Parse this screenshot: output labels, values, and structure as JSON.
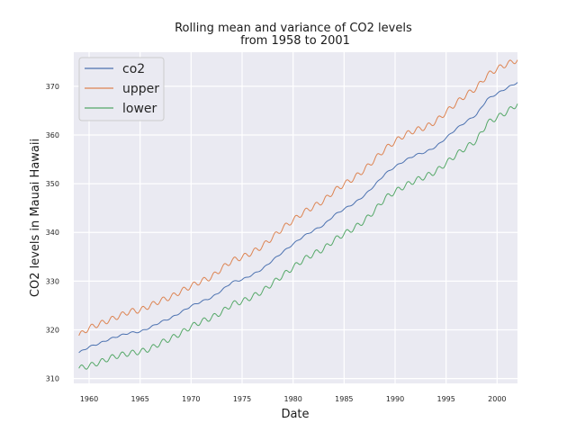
{
  "chart_data": {
    "type": "line",
    "title": "Rolling mean and variance of CO2 levels\nfrom 1958 to 2001",
    "xlabel": "Date",
    "ylabel": "CO2 levels in Mauai Hawaii",
    "xlim": [
      1958.5,
      2002
    ],
    "ylim": [
      309,
      377
    ],
    "xticks": [
      1960,
      1965,
      1970,
      1975,
      1980,
      1985,
      1990,
      1995,
      2000
    ],
    "xtick_labels": [
      "1960",
      "1965",
      "1970",
      "1975",
      "1980",
      "1985",
      "1990",
      "1995",
      "2000"
    ],
    "yticks": [
      310,
      320,
      330,
      340,
      350,
      360,
      370
    ],
    "ytick_labels": [
      "310",
      "320",
      "330",
      "340",
      "350",
      "360",
      "370"
    ],
    "grid": true,
    "legend_position": "top-left",
    "x": [
      1959,
      1960,
      1961,
      1962,
      1963,
      1964,
      1965,
      1966,
      1967,
      1968,
      1969,
      1970,
      1971,
      1972,
      1973,
      1974,
      1975,
      1976,
      1977,
      1978,
      1979,
      1980,
      1981,
      1982,
      1983,
      1984,
      1985,
      1986,
      1987,
      1988,
      1989,
      1990,
      1991,
      1992,
      1993,
      1994,
      1995,
      1996,
      1997,
      1998,
      1999,
      2000,
      2001,
      2002
    ],
    "series": [
      {
        "name": "co2",
        "color": "#4c72b0",
        "values": [
          315.3,
          316.5,
          317.2,
          318.1,
          318.8,
          319.4,
          319.6,
          320.5,
          321.6,
          322.4,
          323.6,
          324.9,
          325.8,
          326.6,
          328.1,
          329.8,
          330.3,
          331.3,
          332.5,
          334.3,
          336.0,
          337.6,
          339.2,
          340.4,
          341.5,
          343.5,
          344.8,
          346.0,
          347.6,
          349.7,
          352.0,
          353.5,
          354.8,
          355.9,
          356.5,
          357.6,
          359.4,
          361.3,
          362.8,
          364.2,
          367.3,
          368.5,
          369.7,
          370.8
        ]
      },
      {
        "name": "upper",
        "color": "#dd8452",
        "values": [
          318.8,
          320.4,
          321.2,
          322.0,
          322.9,
          323.8,
          324.0,
          325.0,
          326.0,
          326.7,
          327.9,
          329.0,
          330.0,
          330.8,
          332.6,
          334.2,
          334.9,
          335.9,
          337.2,
          339.0,
          340.9,
          342.5,
          344.1,
          345.3,
          346.5,
          348.5,
          349.9,
          351.2,
          352.9,
          355.0,
          357.1,
          358.7,
          360.1,
          361.0,
          361.6,
          362.8,
          364.7,
          366.6,
          368.3,
          369.7,
          372.2,
          373.6,
          374.6,
          375.4
        ]
      },
      {
        "name": "lower",
        "color": "#55a868",
        "values": [
          312.1,
          312.6,
          313.3,
          314.2,
          314.8,
          315.2,
          315.5,
          316.1,
          317.3,
          318.2,
          319.3,
          320.7,
          321.7,
          322.5,
          323.6,
          325.3,
          325.8,
          326.8,
          327.9,
          329.6,
          331.2,
          332.8,
          334.4,
          335.6,
          336.6,
          338.4,
          339.7,
          340.9,
          342.4,
          344.5,
          347.0,
          348.4,
          349.6,
          350.7,
          351.5,
          352.5,
          354.2,
          356.0,
          357.5,
          358.9,
          362.4,
          363.6,
          364.8,
          366.4
        ]
      }
    ]
  }
}
